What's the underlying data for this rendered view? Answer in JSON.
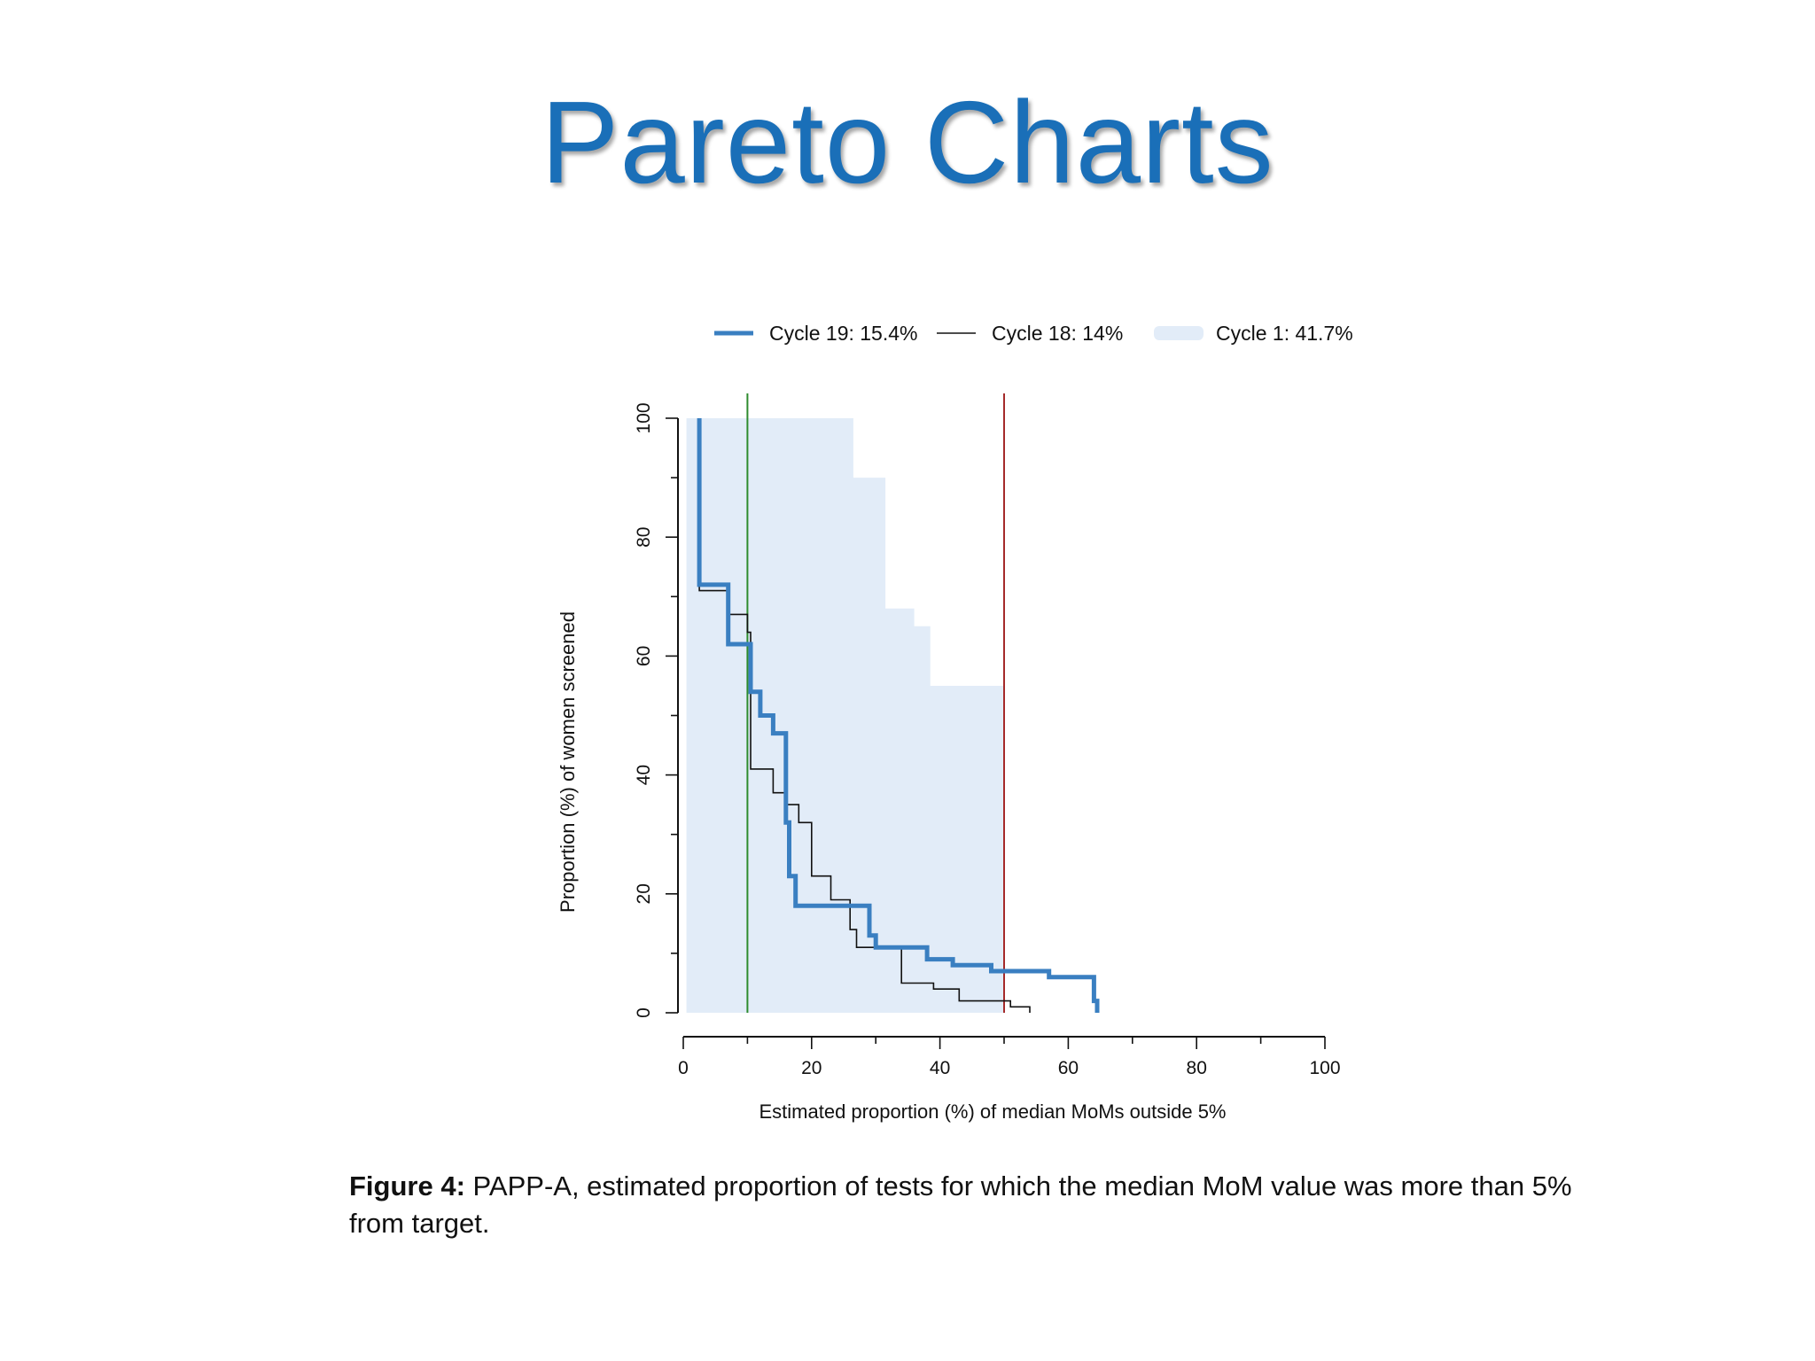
{
  "slide": {
    "title": "Pareto Charts"
  },
  "caption": {
    "label": "Figure 4:",
    "text": "PAPP-A, estimated proportion of tests for which the median MoM value was more than 5% from target."
  },
  "chart_data": {
    "type": "line",
    "xlabel": "Estimated proportion (%) of median MoMs outside 5%",
    "ylabel": "Proportion (%) of women screened",
    "xlim": [
      0,
      100
    ],
    "ylim": [
      0,
      100
    ],
    "xticks": [
      0,
      20,
      40,
      60,
      80,
      100
    ],
    "yticks": [
      0,
      20,
      40,
      60,
      80,
      100
    ],
    "legend_position": "top",
    "reference_lines": [
      {
        "x": 10,
        "color": "#2e8b2e"
      },
      {
        "x": 50,
        "color": "#a52a2a"
      }
    ],
    "series": [
      {
        "name": "Cycle 19: 15.4%",
        "style": "step-line-thick",
        "color": "#3a7fc1",
        "points": [
          [
            2.5,
            100
          ],
          [
            2.5,
            72
          ],
          [
            7,
            72
          ],
          [
            7,
            66
          ],
          [
            7,
            62
          ],
          [
            10.5,
            62
          ],
          [
            10.5,
            54
          ],
          [
            12,
            54
          ],
          [
            12,
            50
          ],
          [
            14,
            50
          ],
          [
            14,
            47
          ],
          [
            16,
            47
          ],
          [
            16,
            32
          ],
          [
            16.5,
            32
          ],
          [
            16.5,
            28
          ],
          [
            16.5,
            23
          ],
          [
            17.5,
            23
          ],
          [
            17.5,
            18
          ],
          [
            29,
            18
          ],
          [
            29,
            13
          ],
          [
            30,
            13
          ],
          [
            30,
            11
          ],
          [
            38,
            11
          ],
          [
            38,
            9
          ],
          [
            42,
            9
          ],
          [
            42,
            8
          ],
          [
            48,
            8
          ],
          [
            48,
            7
          ],
          [
            57,
            7
          ],
          [
            57,
            6
          ],
          [
            64,
            6
          ],
          [
            64,
            2
          ],
          [
            64.5,
            2
          ],
          [
            64.5,
            0
          ]
        ]
      },
      {
        "name": "Cycle 18: 14%",
        "style": "step-line-thin",
        "color": "#111111",
        "points": [
          [
            2.5,
            100
          ],
          [
            2.5,
            71
          ],
          [
            7,
            71
          ],
          [
            7,
            67
          ],
          [
            10,
            67
          ],
          [
            10,
            64
          ],
          [
            10.5,
            64
          ],
          [
            10.5,
            41
          ],
          [
            14,
            41
          ],
          [
            14,
            37
          ],
          [
            16,
            37
          ],
          [
            16,
            35
          ],
          [
            18,
            35
          ],
          [
            18,
            32
          ],
          [
            20,
            32
          ],
          [
            20,
            23
          ],
          [
            23,
            23
          ],
          [
            23,
            19
          ],
          [
            26,
            19
          ],
          [
            26,
            14
          ],
          [
            27,
            14
          ],
          [
            27,
            11
          ],
          [
            34,
            11
          ],
          [
            34,
            5
          ],
          [
            39,
            5
          ],
          [
            39,
            4
          ],
          [
            43,
            4
          ],
          [
            43,
            2
          ],
          [
            51,
            2
          ],
          [
            51,
            1
          ],
          [
            54,
            1
          ],
          [
            54,
            0
          ]
        ]
      },
      {
        "name": "Cycle 1: 41.7%",
        "style": "filled-area",
        "color": "#e2ecf8",
        "points": [
          [
            0.5,
            0
          ],
          [
            0.5,
            100
          ],
          [
            26.5,
            100
          ],
          [
            26.5,
            90
          ],
          [
            31.5,
            90
          ],
          [
            31.5,
            68
          ],
          [
            36,
            68
          ],
          [
            36,
            65
          ],
          [
            38.5,
            65
          ],
          [
            38.5,
            55
          ],
          [
            50,
            55
          ],
          [
            50,
            0
          ]
        ]
      }
    ]
  }
}
